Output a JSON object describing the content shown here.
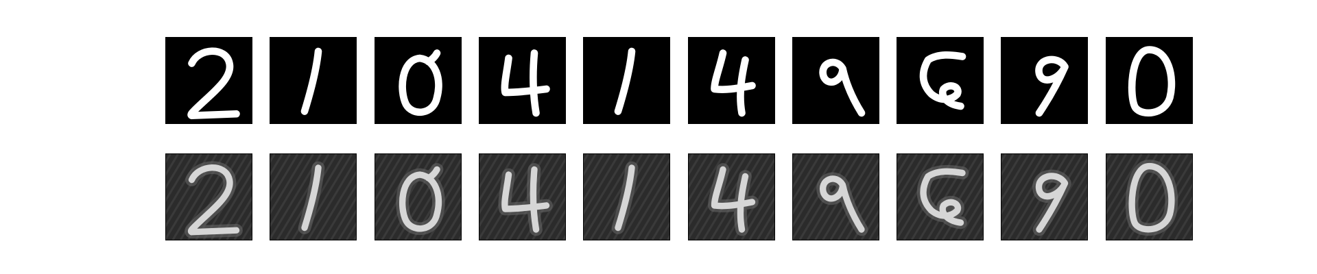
{
  "figure": {
    "rows": [
      {
        "name": "original",
        "background": "#000000",
        "stroke": "#ffffff",
        "digits": [
          "2",
          "1",
          "0",
          "4",
          "1",
          "4",
          "9",
          "5",
          "9",
          "0"
        ]
      },
      {
        "name": "reconstruction",
        "background": "#2b2b2b",
        "stroke": "#d6d6d6",
        "digits": [
          "2",
          "1",
          "0",
          "4",
          "1",
          "4",
          "9",
          "5",
          "9",
          "0"
        ]
      }
    ]
  }
}
